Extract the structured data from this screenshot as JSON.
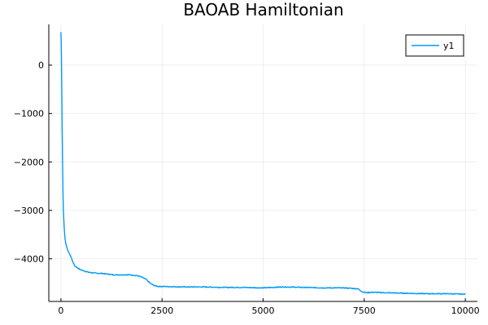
{
  "chart_data": {
    "type": "line",
    "title": "BAOAB Hamiltonian",
    "xlabel": "",
    "ylabel": "",
    "xlim": [
      -300,
      10300
    ],
    "ylim": [
      -4880,
      840
    ],
    "xticks": [
      0,
      2500,
      5000,
      7500,
      10000
    ],
    "xtick_labels": [
      "0",
      "2500",
      "5000",
      "7500",
      "10000"
    ],
    "yticks": [
      0,
      -1000,
      -2000,
      -3000,
      -4000
    ],
    "ytick_labels": [
      "0",
      "−1000",
      "−2000",
      "−3000",
      "−4000"
    ],
    "grid": true,
    "legend_position": "top-right",
    "series": [
      {
        "name": "y1",
        "color": "#009AFA",
        "x": [
          0,
          10,
          20,
          30,
          40,
          50,
          60,
          80,
          100,
          125,
          150,
          200,
          250,
          300,
          350,
          400,
          450,
          500,
          550,
          600,
          700,
          800,
          900,
          1000,
          1100,
          1200,
          1300,
          1400,
          1500,
          1600,
          1700,
          1800,
          1900,
          2000,
          2100,
          2200,
          2300,
          2400,
          2500,
          3000,
          3500,
          4000,
          4500,
          5000,
          5500,
          6000,
          6500,
          7000,
          7200,
          7350,
          7450,
          7550,
          7700,
          8000,
          8500,
          9000,
          9500,
          10000
        ],
        "y": [
          680,
          300,
          -500,
          -1300,
          -2000,
          -2600,
          -3000,
          -3350,
          -3580,
          -3700,
          -3780,
          -3880,
          -3960,
          -4080,
          -4150,
          -4180,
          -4210,
          -4230,
          -4240,
          -4260,
          -4280,
          -4290,
          -4300,
          -4300,
          -4310,
          -4320,
          -4330,
          -4330,
          -4330,
          -4330,
          -4330,
          -4340,
          -4350,
          -4380,
          -4420,
          -4500,
          -4550,
          -4570,
          -4570,
          -4580,
          -4580,
          -4590,
          -4590,
          -4600,
          -4580,
          -4590,
          -4600,
          -4600,
          -4610,
          -4620,
          -4680,
          -4700,
          -4690,
          -4700,
          -4710,
          -4720,
          -4720,
          -4730
        ]
      }
    ]
  }
}
